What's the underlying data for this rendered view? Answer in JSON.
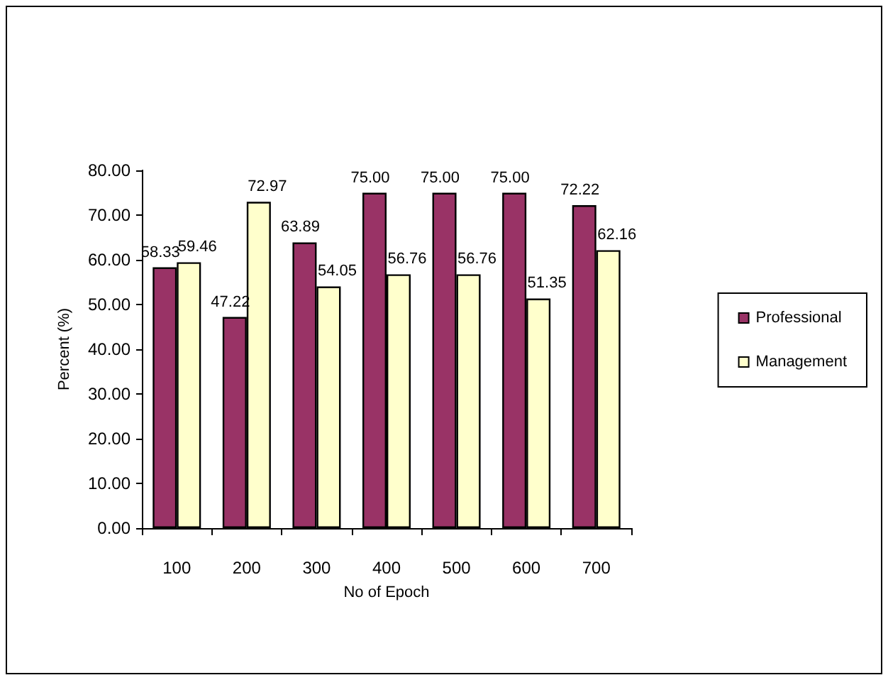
{
  "chart_data": {
    "type": "bar",
    "xlabel": "No of Epoch",
    "ylabel": "Percent (%)",
    "categories": [
      "100",
      "200",
      "300",
      "400",
      "500",
      "600",
      "700"
    ],
    "series": [
      {
        "name": "Professional",
        "color": "#993366",
        "values": [
          58.33,
          47.22,
          63.89,
          75.0,
          75.0,
          75.0,
          72.22
        ],
        "value_labels": [
          "58.33",
          "47.22",
          "63.89",
          "75.00",
          "75.00",
          "75.00",
          "72.22"
        ]
      },
      {
        "name": "Management",
        "color": "#ffffcc",
        "values": [
          59.46,
          72.97,
          54.05,
          56.76,
          56.76,
          51.35,
          62.16
        ],
        "value_labels": [
          "59.46",
          "72.97",
          "54.05",
          "56.76",
          "56.76",
          "51.35",
          "62.16"
        ]
      }
    ],
    "ylim": [
      0,
      80
    ],
    "yticks": [
      {
        "value": 0,
        "label": "0.00"
      },
      {
        "value": 10,
        "label": "10.00"
      },
      {
        "value": 20,
        "label": "20.00"
      },
      {
        "value": 30,
        "label": "30.00"
      },
      {
        "value": 40,
        "label": "40.00"
      },
      {
        "value": 50,
        "label": "50.00"
      },
      {
        "value": 60,
        "label": "60.00"
      },
      {
        "value": 70,
        "label": "70.00"
      },
      {
        "value": 80,
        "label": "80.00"
      }
    ],
    "grid": false,
    "legend": "right"
  }
}
